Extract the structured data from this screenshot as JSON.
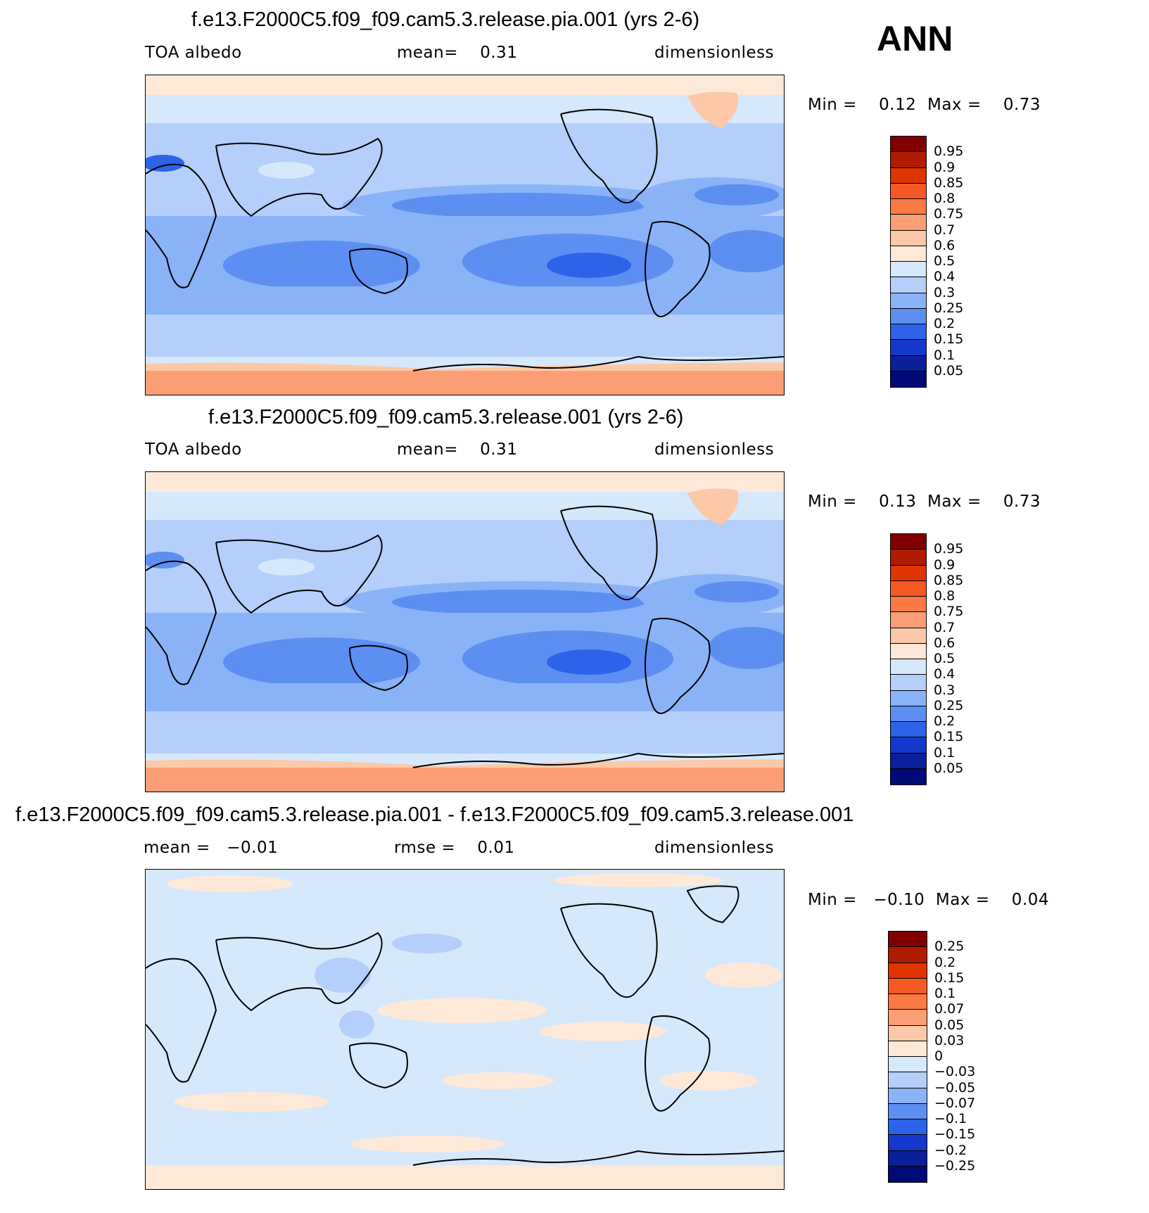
{
  "season": "ANN",
  "panels": [
    {
      "title": "f.e13.F2000C5.f09_f09.cam5.3.release.pia.001 (yrs 2-6)",
      "left_label": "TOA albedo",
      "center_label": "mean=    0.31",
      "right_label": "dimensionless",
      "minmax": "Min =    0.12  Max =    0.73",
      "colorbar_labels": [
        "0.95",
        "0.9",
        "0.85",
        "0.8",
        "0.75",
        "0.7",
        "0.6",
        "0.5",
        "0.4",
        "0.3",
        "0.25",
        "0.2",
        "0.15",
        "0.1",
        "0.05"
      ],
      "map_kind": "field"
    },
    {
      "title": "f.e13.F2000C5.f09_f09.cam5.3.release.001 (yrs 2-6)",
      "left_label": "TOA albedo",
      "center_label": "mean=    0.31",
      "right_label": "dimensionless",
      "minmax": "Min =    0.13  Max =    0.73",
      "colorbar_labels": [
        "0.95",
        "0.9",
        "0.85",
        "0.8",
        "0.75",
        "0.7",
        "0.6",
        "0.5",
        "0.4",
        "0.3",
        "0.25",
        "0.2",
        "0.15",
        "0.1",
        "0.05"
      ],
      "map_kind": "field"
    },
    {
      "title": "f.e13.F2000C5.f09_f09.cam5.3.release.pia.001 - f.e13.F2000C5.f09_f09.cam5.3.release.001",
      "left_label": "mean =   −0.01",
      "center_label": "rmse =    0.01",
      "right_label": "dimensionless",
      "minmax": "Min =   −0.10  Max =    0.04",
      "colorbar_labels": [
        "0.25",
        "0.2",
        "0.15",
        "0.1",
        "0.07",
        "0.05",
        "0.03",
        "0",
        "−0.03",
        "−0.05",
        "−0.07",
        "−0.1",
        "−0.15",
        "−0.2",
        "−0.25"
      ],
      "map_kind": "diff"
    }
  ],
  "colors": {
    "colorbar": [
      "#800000",
      "#b01c00",
      "#e03500",
      "#f55a25",
      "#fb7a44",
      "#fc9e75",
      "#fdc8a8",
      "#fee9d9",
      "#d6e8fc",
      "#b3cffa",
      "#8ab2f7",
      "#5d8ef2",
      "#2d63e8",
      "#1438cc",
      "#0b1f9a",
      "#000b78"
    ]
  }
}
